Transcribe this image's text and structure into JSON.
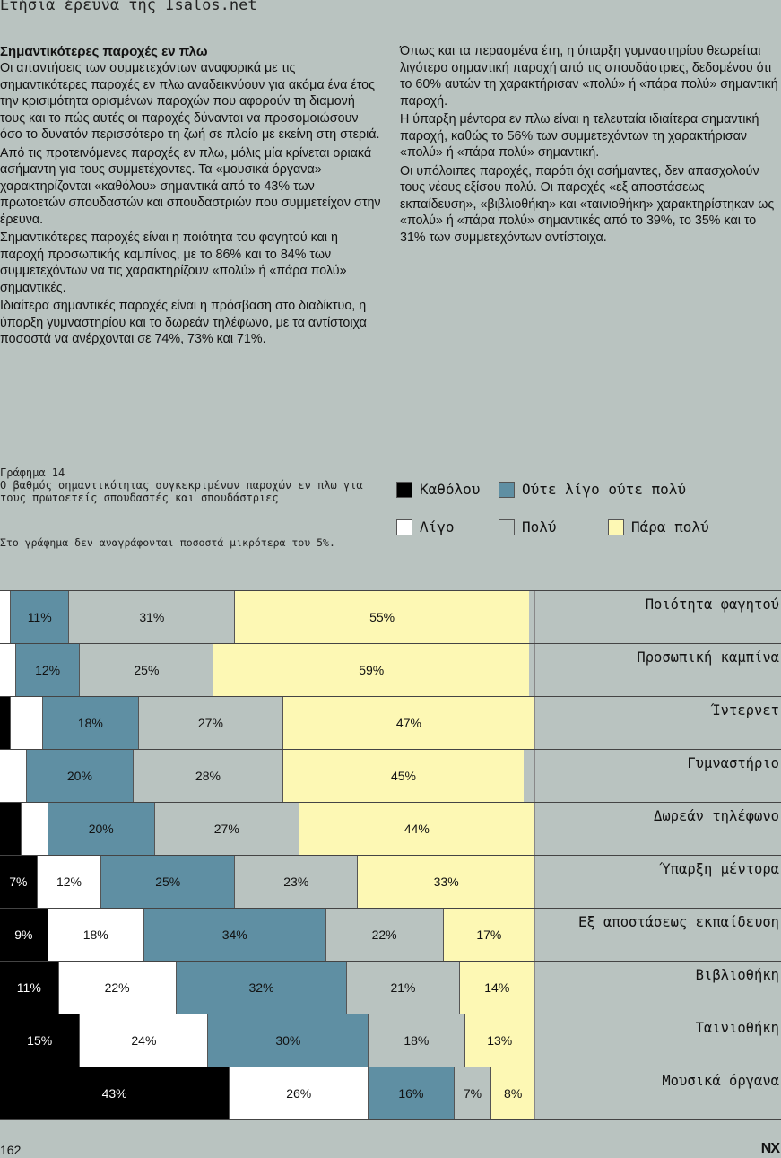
{
  "header": {
    "title": "Ετήσια έρευνα της Isalos.net"
  },
  "article": {
    "heading": "Σημαντικότερες παροχές εν πλω",
    "left_paragraphs": [
      "Οι απαντήσεις των συμμετεχόντων αναφορικά με τις σημαντικότερες παροχές εν πλω αναδεικνύουν για ακόμα ένα έτος την κρισιμότητα ορισμένων παροχών που αφορούν τη διαμονή τους και το πώς αυτές οι παροχές δύνανται να προσομοιώσουν όσο το δυνατόν περισσότερο τη ζωή σε πλοίο με εκείνη στη στεριά.",
      "Από τις προτεινόμενες παροχές εν πλω, μόλις μία κρίνεται οριακά ασήμαντη για τους συμμετέχοντες. Τα «μουσικά όργανα» χαρακτηρίζονται «καθόλου» σημαντικά από το 43% των πρωτοετών σπουδαστών και σπουδαστριών που συμμετείχαν στην έρευνα.",
      "Σημαντικότερες παροχές είναι η ποιότητα του φαγητού και η παροχή προσωπικής καμπίνας, με το 86% και το 84% των συμμετεχόντων να τις χαρακτηρίζουν «πολύ» ή «πάρα πολύ» σημαντικές.",
      "Ιδιαίτερα σημαντικές παροχές είναι η πρόσβαση στο διαδίκτυο, η ύπαρξη γυμναστηρίου και το δωρεάν τηλέφωνο, με τα αντίστοιχα ποσοστά να ανέρχονται σε 74%, 73% και 71%."
    ],
    "right_paragraphs": [
      "Όπως και τα περασμένα έτη, η ύπαρξη γυμναστηρίου θεωρείται λιγότερο σημαντική παροχή από τις σπουδάστριες, δεδομένου ότι το 60% αυτών τη χαρακτήρισαν «πολύ» ή «πάρα πολύ» σημαντική παροχή.",
      "Η ύπαρξη μέντορα εν πλω είναι η τελευταία ιδιαίτερα σημαντική παροχή, καθώς το 56% των συμμετεχόντων τη χαρακτήρισαν «πολύ» ή «πάρα πολύ» σημαντική.",
      "Οι υπόλοιπες παροχές, παρότι όχι ασήμαντες, δεν απασχολούν τους νέους εξίσου πολύ. Οι παροχές «εξ αποστάσεως εκπαίδευση», «βιβλιοθήκη» και «ταινιοθήκη» χαρακτηρίστηκαν ως «πολύ» ή «πάρα πολύ» σημαντικές από το 39%, το 35% και το 31% των συμμετεχόντων αντίστοιχα."
    ]
  },
  "figure": {
    "number": "Γράφημα 14",
    "caption": "Ο βαθμός σημαντικότητας συγκεκριμένων παροχών εν πλω για τους πρωτοετείς σπουδαστές και σπουδάστριες",
    "note": "Στο γράφημα δεν αναγράφονται ποσοστά μικρότερα του 5%."
  },
  "chart_data": {
    "type": "bar",
    "orientation": "horizontal-stacked",
    "categories": [
      "Ποιότητα φαγητού",
      "Προσωπική καμπίνα",
      "Ίντερνετ",
      "Γυμναστήριο",
      "Δωρεάν τηλέφωνο",
      "Ύπαρξη μέντορα",
      "Εξ αποστάσεως εκπαίδευση",
      "Βιβλιοθήκη",
      "Ταινιοθήκη",
      "Μουσικά όργανα"
    ],
    "series": [
      {
        "name": "Καθόλου",
        "color": "#000000",
        "values": [
          0,
          0,
          2,
          0,
          4,
          7,
          9,
          11,
          15,
          43
        ],
        "labels": [
          "",
          "",
          "",
          "",
          "",
          "7%",
          "9%",
          "11%",
          "15%",
          "43%"
        ]
      },
      {
        "name": "Λίγο",
        "color": "#ffffff",
        "values": [
          2,
          3,
          6,
          5,
          5,
          12,
          18,
          22,
          24,
          26
        ],
        "labels": [
          "",
          "",
          "",
          "",
          "",
          "12%",
          "18%",
          "22%",
          "24%",
          "26%"
        ]
      },
      {
        "name": "Ούτε λίγο ούτε πολύ",
        "color": "#5f8fa3",
        "values": [
          11,
          12,
          18,
          20,
          20,
          25,
          34,
          32,
          30,
          16
        ],
        "labels": [
          "11%",
          "12%",
          "18%",
          "20%",
          "20%",
          "25%",
          "34%",
          "32%",
          "30%",
          "16%"
        ]
      },
      {
        "name": "Πολύ",
        "color": "#b9c3c0",
        "values": [
          31,
          25,
          27,
          28,
          27,
          23,
          22,
          21,
          18,
          7
        ],
        "labels": [
          "31%",
          "25%",
          "27%",
          "28%",
          "27%",
          "23%",
          "22%",
          "21%",
          "18%",
          "7%"
        ]
      },
      {
        "name": "Πάρα πολύ",
        "color": "#fdf8b4",
        "values": [
          55,
          59,
          47,
          45,
          44,
          33,
          17,
          14,
          13,
          8
        ],
        "labels": [
          "55%",
          "59%",
          "47%",
          "45%",
          "44%",
          "33%",
          "17%",
          "14%",
          "13%",
          "8%"
        ]
      }
    ],
    "xlim": [
      0,
      100
    ],
    "legend_position": "top-right"
  },
  "footer": {
    "page": "162",
    "logo": "NX"
  }
}
